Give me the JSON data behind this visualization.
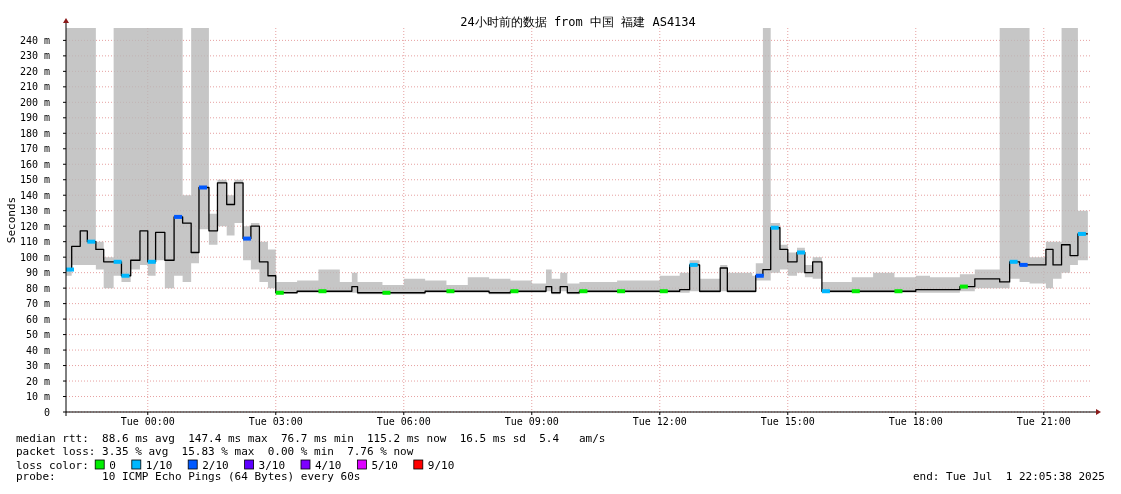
{
  "chart_data": {
    "type": "step",
    "title": "24小时前的数据 from 中国 福建 AS4134",
    "ylabel": "Seconds",
    "legend_title": "loss color:",
    "legend": "bottom",
    "grid": true,
    "xlim": [
      "2025-06-30T22:05",
      "2025-07-01T22:05"
    ],
    "xticks": [
      {
        "value": "2025-07-01T00:00",
        "label": "Tue 00:00"
      },
      {
        "value": "2025-07-01T03:00",
        "label": "Tue 03:00"
      },
      {
        "value": "2025-07-01T06:00",
        "label": "Tue 06:00"
      },
      {
        "value": "2025-07-01T09:00",
        "label": "Tue 09:00"
      },
      {
        "value": "2025-07-01T12:00",
        "label": "Tue 12:00"
      },
      {
        "value": "2025-07-01T15:00",
        "label": "Tue 15:00"
      },
      {
        "value": "2025-07-01T18:00",
        "label": "Tue 18:00"
      },
      {
        "value": "2025-07-01T21:00",
        "label": "Tue 21:00"
      }
    ],
    "ylim": [
      0,
      248
    ],
    "yticks": [
      0,
      {
        "value": 10,
        "label": "10 m"
      },
      {
        "value": 20,
        "label": "20 m"
      },
      {
        "value": 30,
        "label": "30 m"
      },
      {
        "value": 40,
        "label": "40 m"
      },
      {
        "value": 50,
        "label": "50 m"
      },
      {
        "value": 60,
        "label": "60 m"
      },
      {
        "value": 70,
        "label": "70 m"
      },
      {
        "value": 80,
        "label": "80 m"
      },
      {
        "value": 90,
        "label": "90 m"
      },
      {
        "value": 100,
        "label": "100 m"
      },
      {
        "value": 110,
        "label": "110 m"
      },
      {
        "value": 120,
        "label": "120 m"
      },
      {
        "value": 130,
        "label": "130 m"
      },
      {
        "value": 140,
        "label": "140 m"
      },
      {
        "value": 150,
        "label": "150 m"
      },
      {
        "value": 160,
        "label": "160 m"
      },
      {
        "value": 170,
        "label": "170 m"
      },
      {
        "value": 180,
        "label": "180 m"
      },
      {
        "value": 190,
        "label": "190 m"
      },
      {
        "value": 200,
        "label": "200 m"
      },
      {
        "value": 210,
        "label": "210 m"
      },
      {
        "value": 220,
        "label": "220 m"
      },
      {
        "value": 230,
        "label": "230 m"
      },
      {
        "value": 240,
        "label": "240 m"
      }
    ],
    "x": [
      "2025-06-30T22:05",
      "2025-06-30T22:13",
      "2025-06-30T22:25",
      "2025-06-30T22:35",
      "2025-06-30T22:47",
      "2025-06-30T22:58",
      "2025-06-30T23:12",
      "2025-06-30T23:23",
      "2025-06-30T23:36",
      "2025-06-30T23:49",
      "2025-07-01T00:00",
      "2025-07-01T00:11",
      "2025-07-01T00:24",
      "2025-07-01T00:37",
      "2025-07-01T00:49",
      "2025-07-01T01:01",
      "2025-07-01T01:12",
      "2025-07-01T01:26",
      "2025-07-01T01:38",
      "2025-07-01T01:51",
      "2025-07-01T02:02",
      "2025-07-01T02:14",
      "2025-07-01T02:25",
      "2025-07-01T02:37",
      "2025-07-01T02:49",
      "2025-07-01T03:00",
      "2025-07-01T03:30",
      "2025-07-01T04:00",
      "2025-07-01T04:30",
      "2025-07-01T04:47",
      "2025-07-01T04:55",
      "2025-07-01T05:30",
      "2025-07-01T06:00",
      "2025-07-01T06:30",
      "2025-07-01T07:00",
      "2025-07-01T07:30",
      "2025-07-01T08:00",
      "2025-07-01T08:30",
      "2025-07-01T09:00",
      "2025-07-01T09:20",
      "2025-07-01T09:28",
      "2025-07-01T09:40",
      "2025-07-01T09:50",
      "2025-07-01T10:07",
      "2025-07-01T11:00",
      "2025-07-01T12:00",
      "2025-07-01T12:28",
      "2025-07-01T12:42",
      "2025-07-01T12:56",
      "2025-07-01T13:25",
      "2025-07-01T13:35",
      "2025-07-01T14:10",
      "2025-07-01T14:15",
      "2025-07-01T14:25",
      "2025-07-01T14:36",
      "2025-07-01T14:49",
      "2025-07-01T15:00",
      "2025-07-01T15:13",
      "2025-07-01T15:24",
      "2025-07-01T15:35",
      "2025-07-01T15:48",
      "2025-07-01T16:30",
      "2025-07-01T17:00",
      "2025-07-01T17:30",
      "2025-07-01T18:00",
      "2025-07-01T18:20",
      "2025-07-01T19:02",
      "2025-07-01T19:23",
      "2025-07-01T19:58",
      "2025-07-01T20:12",
      "2025-07-01T20:26",
      "2025-07-01T20:40",
      "2025-07-01T21:03",
      "2025-07-01T21:13",
      "2025-07-01T21:25",
      "2025-07-01T21:37",
      "2025-07-01T21:48",
      "2025-07-01T22:02"
    ],
    "series": [
      {
        "color": "#000000",
        "values": [
          92,
          107,
          117,
          110,
          105,
          97,
          97,
          88,
          98,
          117,
          97,
          116,
          98,
          126,
          122,
          103,
          145,
          117,
          148,
          134,
          148,
          112,
          120,
          97,
          88,
          77,
          78,
          78,
          78,
          81,
          77,
          77,
          77,
          78,
          78,
          78,
          77,
          78,
          78,
          81,
          77,
          81,
          77,
          78,
          78,
          78,
          79,
          95,
          78,
          93,
          78,
          78,
          88,
          92,
          119,
          105,
          97,
          103,
          90,
          97,
          78,
          78,
          78,
          78,
          79,
          79,
          81,
          86,
          84,
          97,
          95,
          95,
          105,
          95,
          108,
          101,
          115,
          115
        ],
        "lower": [
          88,
          95,
          95,
          95,
          92,
          80,
          88,
          84,
          92,
          95,
          88,
          98,
          80,
          88,
          84,
          96,
          118,
          108,
          120,
          114,
          122,
          98,
          92,
          84,
          80,
          77,
          77,
          77,
          77,
          77,
          76,
          76,
          76,
          77,
          77,
          77,
          76,
          77,
          77,
          78,
          76,
          78,
          76,
          77,
          77,
          77,
          77,
          78,
          77,
          78,
          77,
          77,
          85,
          85,
          90,
          92,
          88,
          90,
          87,
          86,
          77,
          77,
          77,
          77,
          77,
          77,
          78,
          80,
          80,
          86,
          84,
          83,
          80,
          86,
          90,
          95,
          98,
          110
        ],
        "upper": [
          248,
          248,
          248,
          248,
          110,
          100,
          248,
          248,
          248,
          248,
          248,
          248,
          248,
          248,
          140,
          248,
          248,
          128,
          150,
          140,
          150,
          120,
          122,
          110,
          105,
          84,
          85,
          92,
          84,
          90,
          84,
          82,
          86,
          85,
          82,
          87,
          86,
          85,
          83,
          92,
          86,
          90,
          83,
          84,
          85,
          88,
          90,
          98,
          86,
          95,
          90,
          88,
          96,
          248,
          122,
          108,
          103,
          106,
          95,
          100,
          84,
          87,
          90,
          87,
          88,
          87,
          89,
          92,
          248,
          248,
          248,
          100,
          110,
          110,
          248,
          248,
          130,
          130
        ]
      },
      {
        "type": "scatter",
        "name": "0",
        "color": "#00ee00",
        "x": [
          "2025-07-01T03:00",
          "2025-07-01T04:00",
          "2025-07-01T05:30",
          "2025-07-01T07:00",
          "2025-07-01T08:30",
          "2025-07-01T10:07",
          "2025-07-01T11:00",
          "2025-07-01T12:00",
          "2025-07-01T16:30",
          "2025-07-01T17:30",
          "2025-07-01T19:02"
        ],
        "values": [
          77,
          78,
          77,
          78,
          78,
          78,
          78,
          78,
          78,
          78,
          81
        ]
      },
      {
        "type": "scatter",
        "name": "1/10",
        "color": "#00b8ff",
        "x": [
          "2025-06-30T22:05",
          "2025-06-30T22:35",
          "2025-06-30T23:12",
          "2025-06-30T23:23",
          "2025-07-01T00:00",
          "2025-07-01T12:42",
          "2025-07-01T14:36",
          "2025-07-01T15:13",
          "2025-07-01T15:48",
          "2025-07-01T20:12",
          "2025-07-01T21:48"
        ],
        "values": [
          92,
          110,
          97,
          88,
          97,
          95,
          119,
          103,
          78,
          97,
          115
        ]
      },
      {
        "type": "scatter",
        "name": "2/10",
        "color": "#0059ff",
        "x": [
          "2025-07-01T00:37",
          "2025-07-01T01:12",
          "2025-07-01T02:14",
          "2025-07-01T14:15",
          "2025-07-01T20:26"
        ],
        "values": [
          126,
          145,
          112,
          88,
          95
        ]
      },
      {
        "type": "scatter",
        "name": "3/10",
        "color": "#5e00ff",
        "values": [
          null,
          null,
          null,
          null,
          null,
          null,
          null,
          null,
          null,
          null,
          null,
          null,
          null,
          null,
          null,
          null,
          null,
          null,
          null,
          null,
          null,
          null,
          null,
          null,
          null,
          null,
          null,
          null,
          null,
          null,
          null,
          null,
          null,
          null,
          null,
          null,
          null,
          null,
          null,
          null,
          null,
          null,
          null,
          null,
          null,
          null,
          null,
          null,
          null,
          null,
          null,
          null,
          null,
          null,
          null,
          null,
          null,
          null,
          null,
          null,
          null,
          null,
          null,
          null,
          null,
          null,
          null,
          null,
          null,
          null,
          null,
          null,
          null,
          null,
          null,
          null,
          null,
          null
        ]
      },
      {
        "type": "scatter",
        "name": "4/10",
        "color": "#7e00ff",
        "values": [
          null,
          null,
          null,
          null,
          null,
          null,
          null,
          null,
          null,
          null,
          null,
          null,
          null,
          null,
          null,
          null,
          null,
          null,
          null,
          null,
          null,
          null,
          null,
          null,
          null,
          null,
          null,
          null,
          null,
          null,
          null,
          null,
          null,
          null,
          null,
          null,
          null,
          null,
          null,
          null,
          null,
          null,
          null,
          null,
          null,
          null,
          null,
          null,
          null,
          null,
          null,
          null,
          null,
          null,
          null,
          null,
          null,
          null,
          null,
          null,
          null,
          null,
          null,
          null,
          null,
          null,
          null,
          null,
          null,
          null,
          null,
          null,
          null,
          null,
          null,
          null,
          null,
          null
        ]
      },
      {
        "type": "scatter",
        "name": "5/10",
        "color": "#dd00ff",
        "values": [
          null,
          null,
          null,
          null,
          null,
          null,
          null,
          null,
          null,
          null,
          null,
          null,
          null,
          null,
          null,
          null,
          null,
          null,
          null,
          null,
          null,
          null,
          null,
          null,
          null,
          null,
          null,
          null,
          null,
          null,
          null,
          null,
          null,
          null,
          null,
          null,
          null,
          null,
          null,
          null,
          null,
          null,
          null,
          null,
          null,
          null,
          null,
          null,
          null,
          null,
          null,
          null,
          null,
          null,
          null,
          null,
          null,
          null,
          null,
          null,
          null,
          null,
          null,
          null,
          null,
          null,
          null,
          null,
          null,
          null,
          null,
          null,
          null,
          null,
          null,
          null,
          null,
          null
        ]
      },
      {
        "type": "scatter",
        "name": "9/10",
        "color": "#ff0000",
        "values": [
          null,
          null,
          null,
          null,
          null,
          null,
          null,
          null,
          null,
          null,
          null,
          null,
          null,
          null,
          null,
          null,
          null,
          null,
          null,
          null,
          null,
          null,
          null,
          null,
          null,
          null,
          null,
          null,
          null,
          null,
          null,
          null,
          null,
          null,
          null,
          null,
          null,
          null,
          null,
          null,
          null,
          null,
          null,
          null,
          null,
          null,
          null,
          null,
          null,
          null,
          null,
          null,
          null,
          null,
          null,
          null,
          null,
          null,
          null,
          null,
          null,
          null,
          null,
          null,
          null,
          null,
          null,
          null,
          null,
          null,
          null,
          null,
          null,
          null,
          null,
          null,
          null,
          null
        ]
      }
    ],
    "annotations": [
      "median rtt:  88.6 ms avg  147.4 ms max  76.7 ms min  115.2 ms now  16.5 ms sd  5.4   am/s",
      "packet loss: 3.35 % avg  15.83 % max  0.00 % min  7.76 % now",
      "probe:       10 ICMP Echo Pings (64 Bytes) every 60s",
      "end: Tue Jul  1 22:05:38 2025"
    ]
  }
}
